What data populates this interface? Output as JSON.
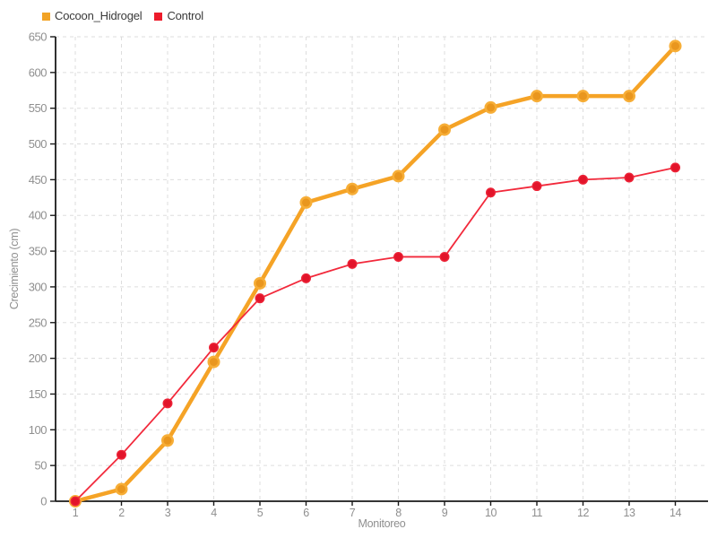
{
  "legend": {
    "items": [
      {
        "label": "Cocoon_Hidrogel",
        "color": "#F2A326"
      },
      {
        "label": "Control",
        "color": "#ED1B2B"
      }
    ]
  },
  "chart_data": {
    "type": "line",
    "title": "",
    "xlabel": "Monitoreo",
    "ylabel": "Crecimiento (cm)",
    "x": [
      1,
      2,
      3,
      4,
      5,
      6,
      7,
      8,
      9,
      10,
      11,
      12,
      13,
      14
    ],
    "series": [
      {
        "name": "Cocoon_Hidrogel",
        "line_color": "#F5A326",
        "line_width": 4.5,
        "marker": {
          "radius": 5.75,
          "fill": "#E9961E",
          "stroke": "#F7AE37",
          "stroke_width": 2.5
        },
        "values": [
          0,
          17,
          85,
          195,
          305,
          418,
          437,
          455,
          520,
          551,
          567,
          567,
          567,
          637
        ]
      },
      {
        "name": "Control",
        "line_color": "#F2293B",
        "line_width": 1.8,
        "marker": {
          "radius": 4.8,
          "fill": "#E2142A",
          "stroke": "#ED2438",
          "stroke_width": 1.4
        },
        "values": [
          0,
          65,
          137,
          215,
          284,
          312,
          332,
          342,
          342,
          432,
          441,
          450,
          453,
          467
        ]
      }
    ],
    "xlim": [
      1,
      14
    ],
    "ylim": [
      0,
      650
    ],
    "ytick_step": 50,
    "grid": "dashed",
    "legend_position": "top-left"
  },
  "axis_style": {
    "tick_label_color": "#8f8f8f",
    "axis_label_color": "#8f8f8f",
    "axis_color": "#1a1a1a",
    "grid_color": "#dddddd"
  }
}
